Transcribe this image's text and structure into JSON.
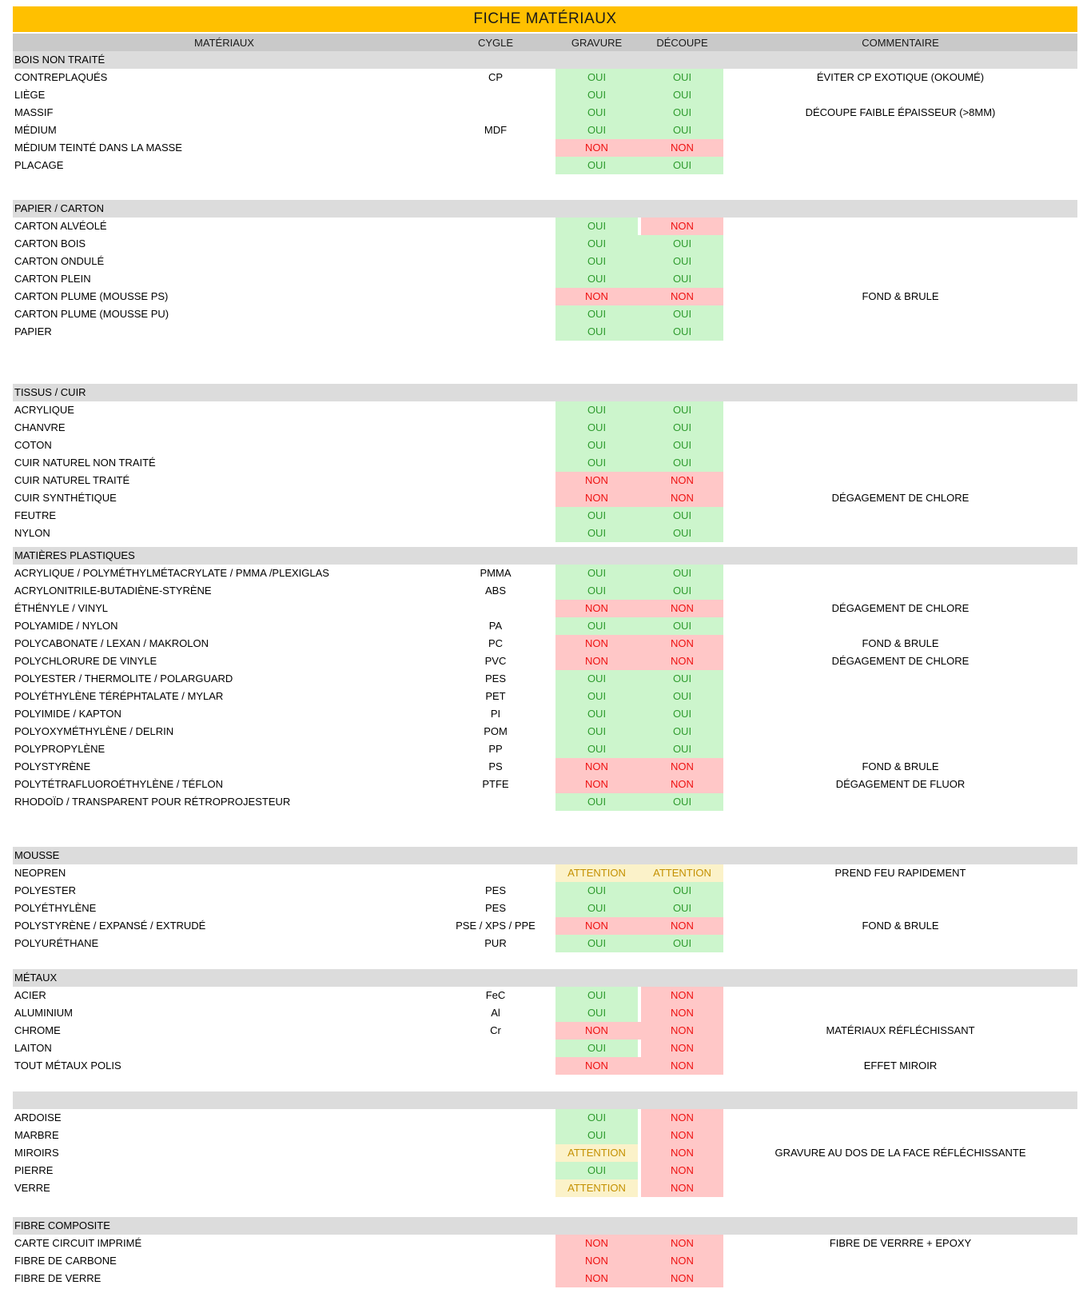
{
  "title": "FICHE MATÉRIAUX",
  "columns": {
    "material": "MATÉRIAUX",
    "cycle": "CYGLE",
    "gravure": "GRAVURE",
    "decoupe": "DÉCOUPE",
    "comment": "COMMENTAIRE"
  },
  "values": {
    "yes": "OUI",
    "no": "NON",
    "warn": "ATTENTION"
  },
  "colors": {
    "title_bg": "#ffc000",
    "header_bg": "#c9c9c9",
    "section_bg": "#dcdcdc",
    "yes_bg": "#ccf5cc",
    "yes_text": "#2e9b2e",
    "no_bg": "#ffc7c7",
    "no_text": "#ee1111",
    "warn_bg": "#fbf2c9",
    "warn_text": "#c49000"
  },
  "sections": [
    {
      "name": "BOIS NON TRAITÉ",
      "rows": [
        {
          "material": "CONTREPLAQUÉS",
          "cycle": "CP",
          "gravure": "yes",
          "decoupe": "yes",
          "comment": "ÉVITER CP EXOTIQUE (OKOUMÉ)"
        },
        {
          "material": "LIÈGE",
          "cycle": "",
          "gravure": "yes",
          "decoupe": "yes",
          "comment": ""
        },
        {
          "material": "MASSIF",
          "cycle": "",
          "gravure": "yes",
          "decoupe": "yes",
          "comment": "DÉCOUPE FAIBLE ÉPAISSEUR (>8MM)"
        },
        {
          "material": "MÉDIUM",
          "cycle": "MDF",
          "gravure": "yes",
          "decoupe": "yes",
          "comment": ""
        },
        {
          "material": "MÉDIUM TEINTÉ DANS LA MASSE",
          "cycle": "",
          "gravure": "no",
          "decoupe": "no",
          "comment": ""
        },
        {
          "material": "PLACAGE",
          "cycle": "",
          "gravure": "yes",
          "decoupe": "yes",
          "comment": ""
        }
      ]
    },
    {
      "name": "PAPIER / CARTON",
      "rows": [
        {
          "material": "CARTON ALVÉOLÉ",
          "cycle": "",
          "gravure": "yes",
          "decoupe": "no",
          "comment": ""
        },
        {
          "material": "CARTON BOIS",
          "cycle": "",
          "gravure": "yes",
          "decoupe": "yes",
          "comment": ""
        },
        {
          "material": "CARTON ONDULÉ",
          "cycle": "",
          "gravure": "yes",
          "decoupe": "yes",
          "comment": ""
        },
        {
          "material": "CARTON PLEIN",
          "cycle": "",
          "gravure": "yes",
          "decoupe": "yes",
          "comment": ""
        },
        {
          "material": "CARTON PLUME (MOUSSE PS)",
          "cycle": "",
          "gravure": "no",
          "decoupe": "no",
          "comment": "FOND & BRULE"
        },
        {
          "material": "CARTON PLUME (MOUSSE PU)",
          "cycle": "",
          "gravure": "yes",
          "decoupe": "yes",
          "comment": ""
        },
        {
          "material": "PAPIER",
          "cycle": "",
          "gravure": "yes",
          "decoupe": "yes",
          "comment": ""
        }
      ]
    },
    {
      "name": "TISSUS / CUIR",
      "rows": [
        {
          "material": "ACRYLIQUE",
          "cycle": "",
          "gravure": "yes",
          "decoupe": "yes",
          "comment": ""
        },
        {
          "material": "CHANVRE",
          "cycle": "",
          "gravure": "yes",
          "decoupe": "yes",
          "comment": ""
        },
        {
          "material": "COTON",
          "cycle": "",
          "gravure": "yes",
          "decoupe": "yes",
          "comment": ""
        },
        {
          "material": "CUIR NATUREL NON TRAITÉ",
          "cycle": "",
          "gravure": "yes",
          "decoupe": "yes",
          "comment": ""
        },
        {
          "material": "CUIR NATUREL TRAITÉ",
          "cycle": "",
          "gravure": "no",
          "decoupe": "no",
          "comment": ""
        },
        {
          "material": "CUIR SYNTHÉTIQUE",
          "cycle": "",
          "gravure": "no",
          "decoupe": "no",
          "comment": "DÉGAGEMENT DE CHLORE"
        },
        {
          "material": "FEUTRE",
          "cycle": "",
          "gravure": "yes",
          "decoupe": "yes",
          "comment": ""
        },
        {
          "material": "NYLON",
          "cycle": "",
          "gravure": "yes",
          "decoupe": "yes",
          "comment": ""
        }
      ]
    },
    {
      "name": "MATIÈRES PLASTIQUES",
      "rows": [
        {
          "material": "ACRYLIQUE / POLYMÉTHYLMÉTACRYLATE / PMMA /PLEXIGLAS",
          "cycle": "PMMA",
          "gravure": "yes",
          "decoupe": "yes",
          "comment": ""
        },
        {
          "material": "ACRYLONITRILE-BUTADIÈNE-STYRÈNE",
          "cycle": "ABS",
          "gravure": "yes",
          "decoupe": "yes",
          "comment": ""
        },
        {
          "material": "ÉTHÉNYLE / VINYL",
          "cycle": "",
          "gravure": "no",
          "decoupe": "no",
          "comment": "DÉGAGEMENT DE CHLORE"
        },
        {
          "material": "POLYAMIDE / NYLON",
          "cycle": "PA",
          "gravure": "yes",
          "decoupe": "yes",
          "comment": ""
        },
        {
          "material": "POLYCABONATE  / LEXAN / MAKROLON",
          "cycle": "PC",
          "gravure": "no",
          "decoupe": "no",
          "comment": "FOND & BRULE"
        },
        {
          "material": "POLYCHLORURE DE VINYLE",
          "cycle": "PVC",
          "gravure": "no",
          "decoupe": "no",
          "comment": "DÉGAGEMENT DE CHLORE"
        },
        {
          "material": "POLYESTER / THERMOLITE / POLARGUARD",
          "cycle": "PES",
          "gravure": "yes",
          "decoupe": "yes",
          "comment": ""
        },
        {
          "material": "POLYÉTHYLÈNE TÉRÉPHTALATE / MYLAR",
          "cycle": "PET",
          "gravure": "yes",
          "decoupe": "yes",
          "comment": ""
        },
        {
          "material": "POLYIMIDE / KAPTON",
          "cycle": "PI",
          "gravure": "yes",
          "decoupe": "yes",
          "comment": ""
        },
        {
          "material": "POLYOXYMÉTHYLÈNE / DELRIN",
          "cycle": "POM",
          "gravure": "yes",
          "decoupe": "yes",
          "comment": ""
        },
        {
          "material": "POLYPROPYLÈNE",
          "cycle": "PP",
          "gravure": "yes",
          "decoupe": "yes",
          "comment": ""
        },
        {
          "material": "POLYSTYRÈNE",
          "cycle": "PS",
          "gravure": "no",
          "decoupe": "no",
          "comment": "FOND & BRULE"
        },
        {
          "material": "POLYTÉTRAFLUOROÉTHYLÈNE / TÉFLON",
          "cycle": "PTFE",
          "gravure": "no",
          "decoupe": "no",
          "comment": "DÉGAGEMENT DE FLUOR"
        },
        {
          "material": "RHODOÏD / TRANSPARENT POUR RÉTROPROJESTEUR",
          "cycle": "",
          "gravure": "yes",
          "decoupe": "yes",
          "comment": ""
        }
      ]
    },
    {
      "name": "MOUSSE",
      "rows": [
        {
          "material": "NEOPREN",
          "cycle": "",
          "gravure": "warn",
          "decoupe": "warn",
          "comment": "PREND FEU RAPIDEMENT"
        },
        {
          "material": "POLYESTER",
          "cycle": "PES",
          "gravure": "yes",
          "decoupe": "yes",
          "comment": ""
        },
        {
          "material": "POLYÉTHYLÈNE",
          "cycle": "PES",
          "gravure": "yes",
          "decoupe": "yes",
          "comment": ""
        },
        {
          "material": "POLYSTYRÈNE / EXPANSÉ / EXTRUDÉ",
          "cycle": "PSE / XPS / PPE",
          "gravure": "no",
          "decoupe": "no",
          "comment": "FOND & BRULE"
        },
        {
          "material": "POLYURÉTHANE",
          "cycle": "PUR",
          "gravure": "yes",
          "decoupe": "yes",
          "comment": ""
        }
      ]
    },
    {
      "name": "MÉTAUX",
      "rows": [
        {
          "material": "ACIER",
          "cycle": "FeC",
          "gravure": "yes",
          "decoupe": "no",
          "comment": ""
        },
        {
          "material": "ALUMINIUM",
          "cycle": "Al",
          "gravure": "yes",
          "decoupe": "no",
          "comment": ""
        },
        {
          "material": "CHROME",
          "cycle": "Cr",
          "gravure": "no",
          "decoupe": "no",
          "comment": "MATÉRIAUX RÉFLÉCHISSANT"
        },
        {
          "material": "LAITON",
          "cycle": "",
          "gravure": "yes",
          "decoupe": "no",
          "comment": ""
        },
        {
          "material": "TOUT MÉTAUX POLIS",
          "cycle": "",
          "gravure": "no",
          "decoupe": "no",
          "comment": "EFFET MIROIR"
        }
      ]
    },
    {
      "name": "",
      "rows": [
        {
          "material": "ARDOISE",
          "cycle": "",
          "gravure": "yes",
          "decoupe": "no",
          "comment": ""
        },
        {
          "material": "MARBRE",
          "cycle": "",
          "gravure": "yes",
          "decoupe": "no",
          "comment": ""
        },
        {
          "material": "MIROIRS",
          "cycle": "",
          "gravure": "warn",
          "decoupe": "no",
          "comment": "GRAVURE AU DOS DE LA FACE RÉFLÉCHISSANTE"
        },
        {
          "material": "PIERRE",
          "cycle": "",
          "gravure": "yes",
          "decoupe": "no",
          "comment": ""
        },
        {
          "material": "VERRE",
          "cycle": "",
          "gravure": "warn",
          "decoupe": "no",
          "comment": ""
        }
      ]
    },
    {
      "name": "FIBRE COMPOSITE",
      "rows": [
        {
          "material": "CARTE CIRCUIT IMPRIMÉ",
          "cycle": "",
          "gravure": "no",
          "decoupe": "no",
          "comment": "FIBRE DE VERRRE + EPOXY"
        },
        {
          "material": "FIBRE DE CARBONE",
          "cycle": "",
          "gravure": "no",
          "decoupe": "no",
          "comment": ""
        },
        {
          "material": "FIBRE DE VERRE",
          "cycle": "",
          "gravure": "no",
          "decoupe": "no",
          "comment": ""
        }
      ]
    }
  ]
}
